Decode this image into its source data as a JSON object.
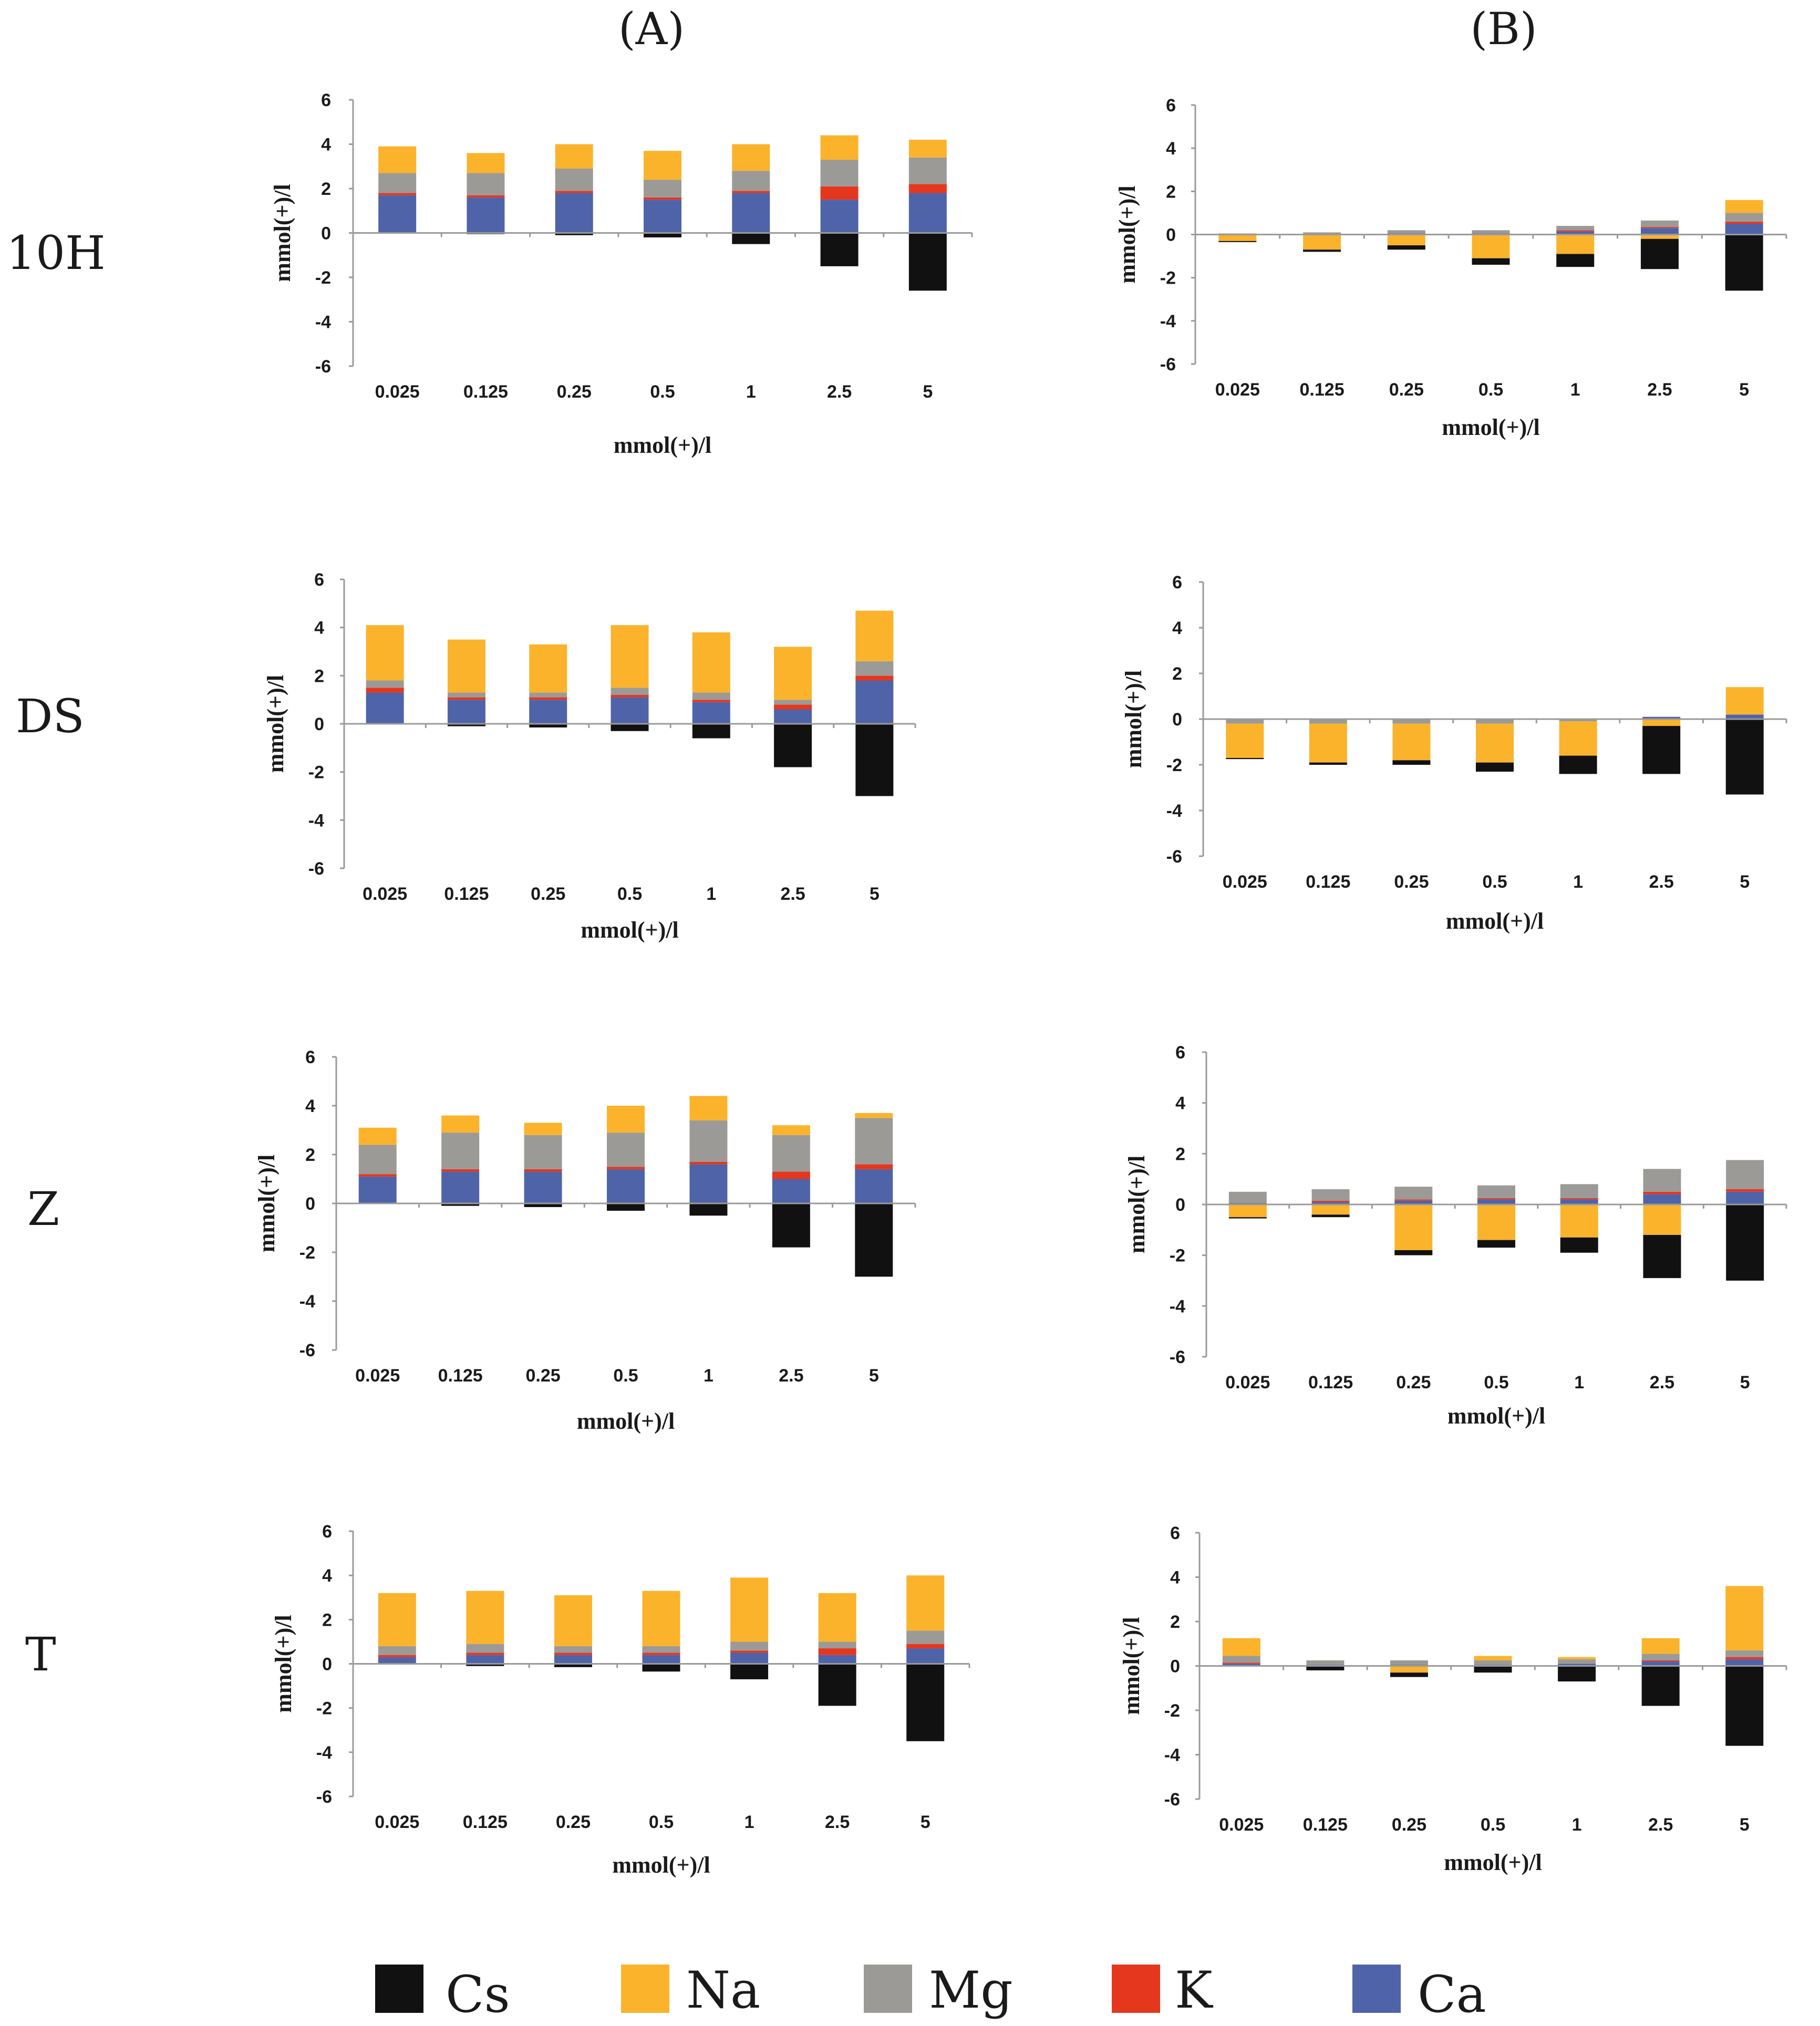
{
  "figure": {
    "column_headers": [
      "(A)",
      "(B)"
    ],
    "row_labels": [
      "10H",
      "DS",
      "Z",
      "T"
    ],
    "legend": [
      {
        "name": "Cs",
        "color": "#111111"
      },
      {
        "name": "Na",
        "color": "#FBB32C"
      },
      {
        "name": "Mg",
        "color": "#9C9A97"
      },
      {
        "name": "K",
        "color": "#E5371E"
      },
      {
        "name": "Ca",
        "color": "#4F63A9"
      }
    ]
  },
  "chart_data": [
    {
      "id": "10H-A",
      "type": "bar",
      "stacked": true,
      "row": "10H",
      "column": "(A)",
      "xlabel": "mmol(+)/l",
      "ylabel": "mmol(+)/l",
      "ylim": [
        -6,
        6
      ],
      "yticks": [
        6,
        4,
        2,
        0,
        -2,
        -4,
        -6
      ],
      "categories": [
        "0.025",
        "0.125",
        "0.25",
        "0.5",
        "1",
        "2.5",
        "5"
      ],
      "series": [
        {
          "name": "Ca",
          "values": [
            1.7,
            1.6,
            1.8,
            1.5,
            1.8,
            1.5,
            1.8
          ]
        },
        {
          "name": "K",
          "values": [
            0.1,
            0.1,
            0.1,
            0.1,
            0.1,
            0.6,
            0.4
          ]
        },
        {
          "name": "Mg",
          "values": [
            0.9,
            1.0,
            1.0,
            0.8,
            0.9,
            1.2,
            1.2
          ]
        },
        {
          "name": "Na",
          "values": [
            1.2,
            0.9,
            1.1,
            1.3,
            1.2,
            1.1,
            0.8
          ]
        },
        {
          "name": "Cs",
          "values": [
            0,
            -0.05,
            -0.1,
            -0.2,
            -0.5,
            -1.5,
            -2.6
          ]
        }
      ]
    },
    {
      "id": "10H-B",
      "type": "bar",
      "stacked": true,
      "row": "10H",
      "column": "(B)",
      "xlabel": "mmol(+)/l",
      "ylabel": "mmol(+)/l",
      "ylim": [
        -6,
        6
      ],
      "yticks": [
        6,
        4,
        2,
        0,
        -2,
        -4,
        -6
      ],
      "categories": [
        "0.025",
        "0.125",
        "0.25",
        "0.5",
        "1",
        "2.5",
        "5"
      ],
      "series": [
        {
          "name": "Ca",
          "values": [
            0,
            0,
            0.05,
            0.05,
            0.15,
            0.3,
            0.5
          ]
        },
        {
          "name": "K",
          "values": [
            0,
            0,
            0,
            0,
            0.05,
            0.05,
            0.1
          ]
        },
        {
          "name": "Mg",
          "values": [
            0.05,
            0.1,
            0.15,
            0.15,
            0.2,
            0.3,
            0.4
          ]
        },
        {
          "name": "Na",
          "values": [
            -0.3,
            -0.7,
            -0.5,
            -1.1,
            -0.9,
            -0.2,
            0.6
          ]
        },
        {
          "name": "Cs",
          "values": [
            -0.05,
            -0.1,
            -0.2,
            -0.3,
            -0.6,
            -1.4,
            -2.6
          ]
        }
      ]
    },
    {
      "id": "DS-A",
      "type": "bar",
      "stacked": true,
      "row": "DS",
      "column": "(A)",
      "xlabel": "mmol(+)/l",
      "ylabel": "mmol(+)/l",
      "ylim": [
        -6,
        6
      ],
      "yticks": [
        6,
        4,
        2,
        0,
        -2,
        -4,
        -6
      ],
      "categories": [
        "0.025",
        "0.125",
        "0.25",
        "0.5",
        "1",
        "2.5",
        "5"
      ],
      "series": [
        {
          "name": "Ca",
          "values": [
            1.3,
            1.0,
            1.0,
            1.1,
            0.9,
            0.6,
            1.8
          ]
        },
        {
          "name": "K",
          "values": [
            0.2,
            0.1,
            0.1,
            0.1,
            0.1,
            0.2,
            0.2
          ]
        },
        {
          "name": "Mg",
          "values": [
            0.3,
            0.2,
            0.2,
            0.3,
            0.3,
            0.2,
            0.6
          ]
        },
        {
          "name": "Na",
          "values": [
            2.3,
            2.2,
            2.0,
            2.6,
            2.5,
            2.2,
            2.1
          ]
        },
        {
          "name": "Cs",
          "values": [
            0,
            -0.1,
            -0.15,
            -0.3,
            -0.6,
            -1.8,
            -3.0
          ]
        }
      ]
    },
    {
      "id": "DS-B",
      "type": "bar",
      "stacked": true,
      "row": "DS",
      "column": "(B)",
      "xlabel": "mmol(+)/l",
      "ylabel": "mmol(+)/l",
      "ylim": [
        -6,
        6
      ],
      "yticks": [
        6,
        4,
        2,
        0,
        -2,
        -4,
        -6
      ],
      "categories": [
        "0.025",
        "0.125",
        "0.25",
        "0.5",
        "1",
        "2.5",
        "5"
      ],
      "series": [
        {
          "name": "Ca",
          "values": [
            0,
            0,
            0,
            0,
            0,
            0.1,
            0.2
          ]
        },
        {
          "name": "K",
          "values": [
            0,
            0,
            0,
            0,
            0,
            0,
            0
          ]
        },
        {
          "name": "Mg",
          "values": [
            -0.2,
            -0.2,
            -0.2,
            -0.2,
            -0.1,
            0,
            0
          ]
        },
        {
          "name": "Na",
          "values": [
            -1.5,
            -1.7,
            -1.6,
            -1.7,
            -1.5,
            -0.3,
            1.2
          ]
        },
        {
          "name": "Cs",
          "values": [
            -0.05,
            -0.1,
            -0.2,
            -0.4,
            -0.8,
            -2.1,
            -3.3
          ]
        }
      ]
    },
    {
      "id": "Z-A",
      "type": "bar",
      "stacked": true,
      "row": "Z",
      "column": "(A)",
      "xlabel": "mmol(+)/l",
      "ylabel": "mmol(+)/l",
      "ylim": [
        -6,
        6
      ],
      "yticks": [
        6,
        4,
        2,
        0,
        -2,
        -4,
        -6
      ],
      "categories": [
        "0.025",
        "0.125",
        "0.25",
        "0.5",
        "1",
        "2.5",
        "5"
      ],
      "series": [
        {
          "name": "Ca",
          "values": [
            1.1,
            1.3,
            1.3,
            1.4,
            1.6,
            1.0,
            1.4
          ]
        },
        {
          "name": "K",
          "values": [
            0.1,
            0.1,
            0.1,
            0.1,
            0.1,
            0.3,
            0.2
          ]
        },
        {
          "name": "Mg",
          "values": [
            1.2,
            1.5,
            1.4,
            1.4,
            1.7,
            1.5,
            1.9
          ]
        },
        {
          "name": "Na",
          "values": [
            0.7,
            0.7,
            0.5,
            1.1,
            1.0,
            0.4,
            0.2
          ]
        },
        {
          "name": "Cs",
          "values": [
            0,
            -0.1,
            -0.15,
            -0.3,
            -0.5,
            -1.8,
            -3.0
          ]
        }
      ]
    },
    {
      "id": "Z-B",
      "type": "bar",
      "stacked": true,
      "row": "Z",
      "column": "(B)",
      "xlabel": "mmol(+)/l",
      "ylabel": "mmol(+)/l",
      "ylim": [
        -6,
        6
      ],
      "yticks": [
        6,
        4,
        2,
        0,
        -2,
        -4,
        -6
      ],
      "categories": [
        "0.025",
        "0.125",
        "0.25",
        "0.5",
        "1",
        "2.5",
        "5"
      ],
      "series": [
        {
          "name": "Ca",
          "values": [
            0.05,
            0.1,
            0.15,
            0.2,
            0.2,
            0.4,
            0.5
          ]
        },
        {
          "name": "K",
          "values": [
            0,
            0.05,
            0.05,
            0.05,
            0.05,
            0.1,
            0.1
          ]
        },
        {
          "name": "Mg",
          "values": [
            0.45,
            0.45,
            0.5,
            0.5,
            0.55,
            0.9,
            1.15
          ]
        },
        {
          "name": "Na",
          "values": [
            -0.5,
            -0.4,
            -1.8,
            -1.4,
            -1.3,
            -1.2,
            0
          ]
        },
        {
          "name": "Cs",
          "values": [
            -0.05,
            -0.1,
            -0.2,
            -0.3,
            -0.6,
            -1.7,
            -3.0
          ]
        }
      ]
    },
    {
      "id": "T-A",
      "type": "bar",
      "stacked": true,
      "row": "T",
      "column": "(A)",
      "xlabel": "mmol(+)/l",
      "ylabel": "mmol(+)/l",
      "ylim": [
        -6,
        6
      ],
      "yticks": [
        6,
        4,
        2,
        0,
        -2,
        -4,
        -6
      ],
      "categories": [
        "0.025",
        "0.125",
        "0.25",
        "0.5",
        "1",
        "2.5",
        "5"
      ],
      "series": [
        {
          "name": "Ca",
          "values": [
            0.3,
            0.4,
            0.4,
            0.4,
            0.5,
            0.4,
            0.7
          ]
        },
        {
          "name": "K",
          "values": [
            0.1,
            0.1,
            0.1,
            0.1,
            0.1,
            0.3,
            0.2
          ]
        },
        {
          "name": "Mg",
          "values": [
            0.4,
            0.4,
            0.3,
            0.3,
            0.4,
            0.3,
            0.6
          ]
        },
        {
          "name": "Na",
          "values": [
            2.4,
            2.4,
            2.3,
            2.5,
            2.9,
            2.2,
            2.5
          ]
        },
        {
          "name": "Cs",
          "values": [
            0,
            -0.1,
            -0.15,
            -0.35,
            -0.7,
            -1.9,
            -3.5
          ]
        }
      ]
    },
    {
      "id": "T-B",
      "type": "bar",
      "stacked": true,
      "row": "T",
      "column": "(B)",
      "xlabel": "mmol(+)/l",
      "ylabel": "mmol(+)/l",
      "ylim": [
        -6,
        6
      ],
      "yticks": [
        6,
        4,
        2,
        0,
        -2,
        -4,
        -6
      ],
      "categories": [
        "0.025",
        "0.125",
        "0.25",
        "0.5",
        "1",
        "2.5",
        "5"
      ],
      "series": [
        {
          "name": "Ca",
          "values": [
            0.1,
            0.05,
            0.05,
            0.05,
            0.1,
            0.2,
            0.3
          ]
        },
        {
          "name": "K",
          "values": [
            0.05,
            0,
            0,
            0,
            0,
            0.05,
            0.1
          ]
        },
        {
          "name": "Mg",
          "values": [
            0.3,
            0.2,
            0.2,
            0.2,
            0.2,
            0.3,
            0.3
          ]
        },
        {
          "name": "Na",
          "values": [
            0.8,
            0,
            -0.3,
            0.2,
            0.1,
            0.7,
            2.9
          ]
        },
        {
          "name": "Cs",
          "values": [
            0,
            -0.2,
            -0.2,
            -0.3,
            -0.7,
            -1.8,
            -3.6
          ]
        }
      ]
    }
  ]
}
